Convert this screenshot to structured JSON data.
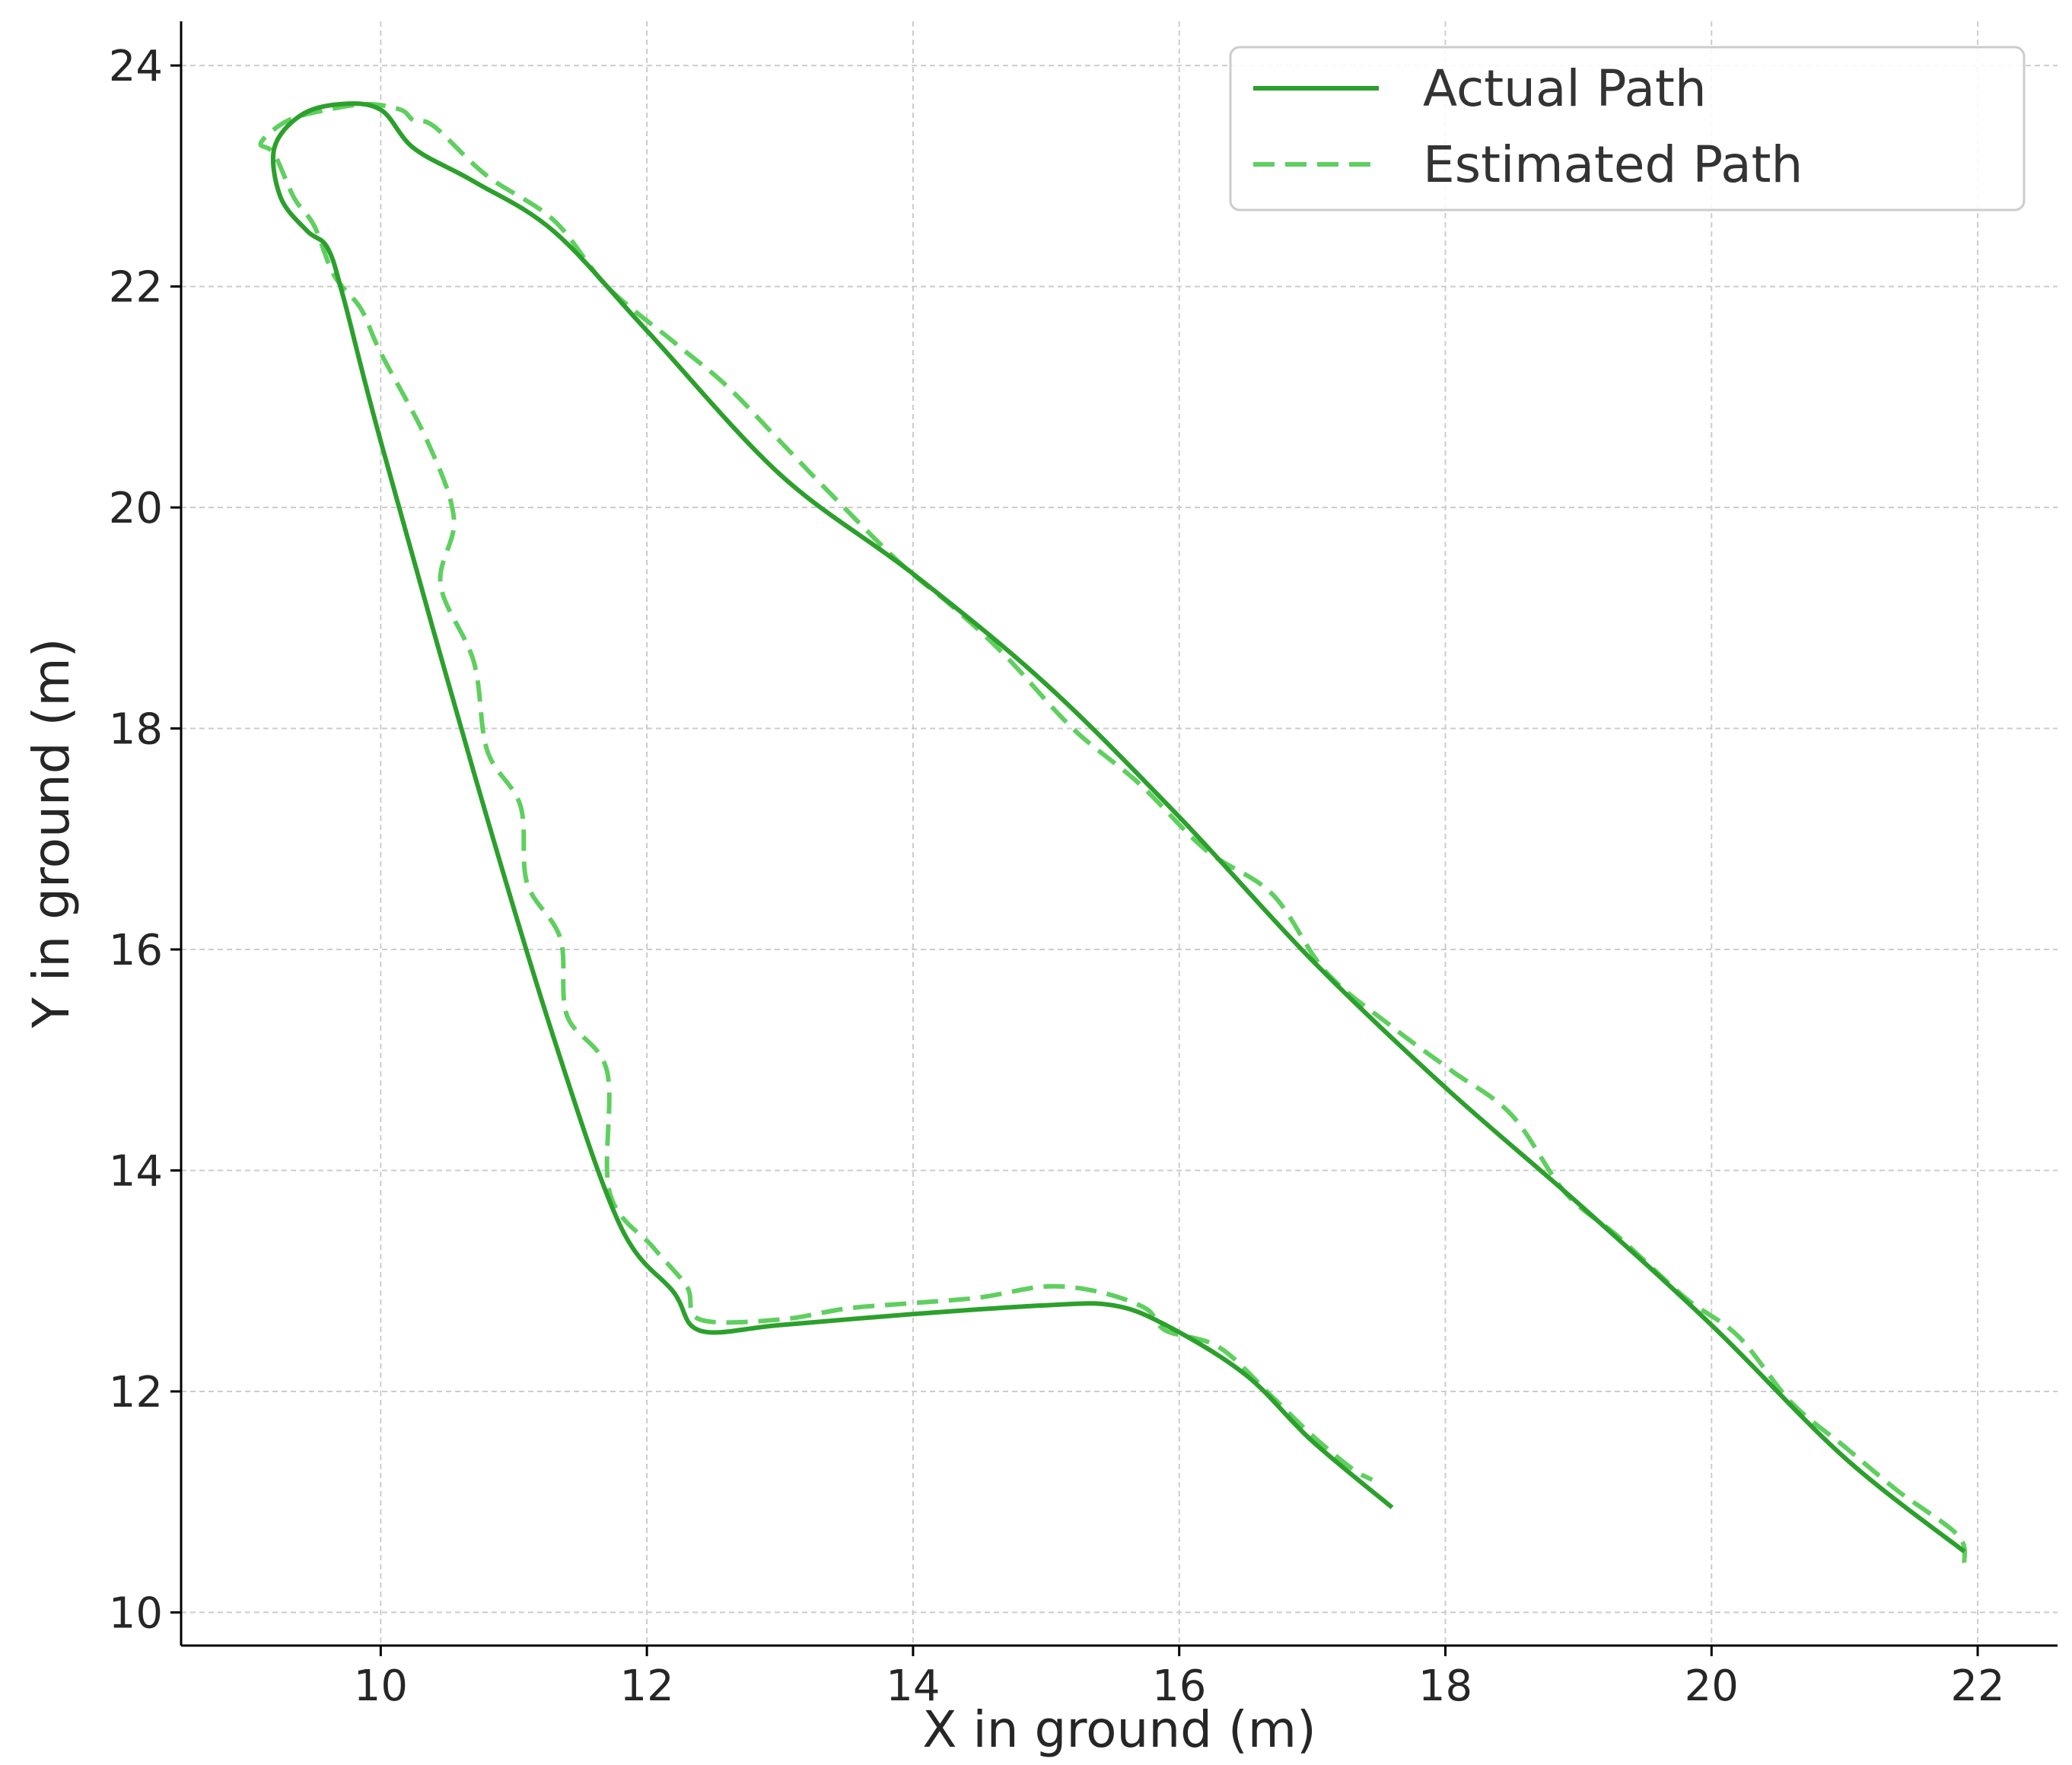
{
  "chart_data": {
    "type": "line",
    "title": "",
    "xlabel": "X in ground (m)",
    "ylabel": "Y in ground (m)",
    "xlim": [
      8.5,
      22.6
    ],
    "ylim": [
      9.7,
      24.4
    ],
    "xticks": [
      10,
      12,
      14,
      16,
      18,
      20,
      22
    ],
    "yticks": [
      10,
      12,
      14,
      16,
      18,
      20,
      22,
      24
    ],
    "grid": true,
    "legend_position": "top-right",
    "colors": {
      "actual": "#2ca02c",
      "estimated": "#5fcf5f",
      "grid": "#cccccc",
      "axis": "#000000"
    },
    "series": [
      {
        "name": "Actual Path",
        "style": "solid",
        "x": [
          21.9,
          21.0,
          20.0,
          19.0,
          18.0,
          17.0,
          16.0,
          15.0,
          14.0,
          13.0,
          12.0,
          11.3,
          10.7,
          10.25,
          10.0,
          9.7,
          9.4,
          9.2,
          9.25,
          9.45,
          9.6,
          9.72,
          10.0,
          10.7,
          11.3,
          11.8,
          12.2,
          12.4,
          13.0,
          14.0,
          15.0,
          15.5,
          15.9,
          16.5,
          17.0,
          17.6
        ],
        "y": [
          10.55,
          11.4,
          12.6,
          13.7,
          14.75,
          15.9,
          17.2,
          18.4,
          19.4,
          20.3,
          21.6,
          22.5,
          22.95,
          23.25,
          23.6,
          23.65,
          23.55,
          23.25,
          22.8,
          22.5,
          22.35,
          21.9,
          20.6,
          17.6,
          15.2,
          13.5,
          12.9,
          12.55,
          12.6,
          12.7,
          12.78,
          12.78,
          12.6,
          12.15,
          11.55,
          10.95
        ]
      },
      {
        "name": "Estimated Path",
        "style": "dashed",
        "x": [
          21.9,
          21.85,
          21.4,
          21.0,
          20.6,
          20.2,
          19.8,
          19.3,
          18.9,
          18.5,
          18.05,
          17.6,
          17.1,
          16.7,
          16.2,
          15.7,
          15.2,
          14.7,
          14.3,
          13.9,
          13.4,
          13.0,
          12.6,
          12.2,
          11.7,
          11.3,
          10.8,
          10.4,
          10.25,
          10.15,
          9.9,
          9.6,
          9.3,
          9.1,
          9.2,
          9.35,
          9.5,
          9.65,
          9.85,
          10.0,
          10.35,
          10.55,
          10.45,
          10.7,
          10.8,
          11.05,
          11.1,
          11.35,
          11.4,
          11.7,
          11.72,
          12.05,
          12.3,
          12.4,
          13.0,
          13.5,
          14.0,
          14.5,
          15.0,
          15.4,
          15.75,
          15.9,
          16.3,
          16.7,
          17.0,
          17.3,
          17.45
        ],
        "y": [
          10.45,
          10.7,
          11.1,
          11.5,
          11.9,
          12.5,
          12.85,
          13.4,
          13.8,
          14.5,
          14.9,
          15.3,
          15.8,
          16.5,
          16.9,
          17.5,
          18.0,
          18.65,
          19.1,
          19.5,
          20.1,
          20.6,
          21.1,
          21.5,
          22.0,
          22.6,
          23.0,
          23.45,
          23.5,
          23.6,
          23.65,
          23.6,
          23.5,
          23.3,
          23.2,
          22.8,
          22.55,
          22.1,
          21.8,
          21.4,
          20.6,
          19.9,
          19.3,
          18.6,
          17.8,
          17.3,
          16.6,
          16.1,
          15.4,
          14.9,
          13.8,
          13.3,
          12.95,
          12.65,
          12.65,
          12.75,
          12.8,
          12.85,
          12.95,
          12.9,
          12.75,
          12.55,
          12.4,
          11.95,
          11.6,
          11.3,
          11.2
        ]
      }
    ]
  }
}
